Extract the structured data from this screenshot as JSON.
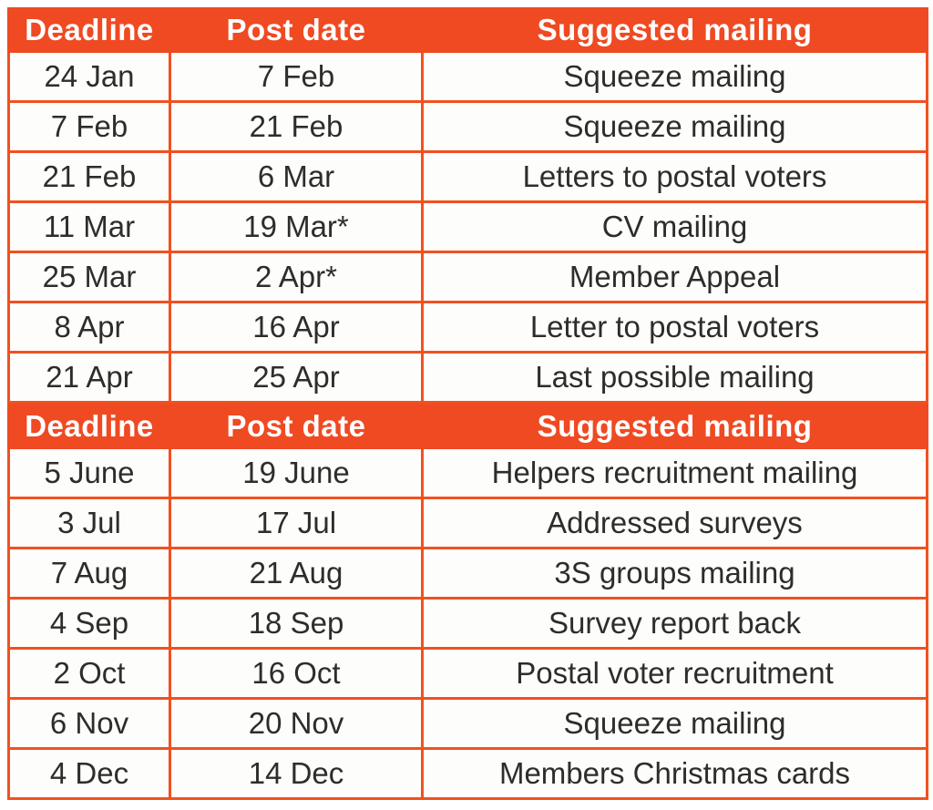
{
  "page": {
    "background_color": "#FFFFFF",
    "accent_color": "#EF4A22",
    "row_background_color": "#FDFDFC",
    "body_text_color": "#2E2D2C",
    "header_text_color": "#FFFFFF"
  },
  "tables": [
    {
      "name": "first-half-mailing-schedule",
      "headers": {
        "deadline": "Deadline",
        "post_date": "Post date",
        "suggested_mailing": "Suggested mailing"
      },
      "rows": [
        {
          "deadline": "24 Jan",
          "post_date": "7 Feb",
          "suggested_mailing": "Squeeze mailing"
        },
        {
          "deadline": "7 Feb",
          "post_date": "21 Feb",
          "suggested_mailing": "Squeeze mailing"
        },
        {
          "deadline": "21 Feb",
          "post_date": "6 Mar",
          "suggested_mailing": "Letters to postal voters"
        },
        {
          "deadline": "11 Mar",
          "post_date": "19 Mar*",
          "suggested_mailing": "CV mailing"
        },
        {
          "deadline": "25 Mar",
          "post_date": "2 Apr*",
          "suggested_mailing": "Member Appeal"
        },
        {
          "deadline": "8 Apr",
          "post_date": "16 Apr",
          "suggested_mailing": "Letter to postal voters"
        },
        {
          "deadline": "21 Apr",
          "post_date": "25 Apr",
          "suggested_mailing": "Last possible mailing"
        }
      ]
    },
    {
      "name": "second-half-mailing-schedule",
      "headers": {
        "deadline": "Deadline",
        "post_date": "Post date",
        "suggested_mailing": "Suggested mailing"
      },
      "rows": [
        {
          "deadline": "5 June",
          "post_date": "19 June",
          "suggested_mailing": "Helpers recruitment mailing"
        },
        {
          "deadline": "3 Jul",
          "post_date": "17 Jul",
          "suggested_mailing": "Addressed surveys"
        },
        {
          "deadline": "7 Aug",
          "post_date": "21 Aug",
          "suggested_mailing": "3S groups mailing"
        },
        {
          "deadline": "4 Sep",
          "post_date": "18 Sep",
          "suggested_mailing": "Survey report back"
        },
        {
          "deadline": "2 Oct",
          "post_date": "16 Oct",
          "suggested_mailing": "Postal voter recruitment"
        },
        {
          "deadline": "6 Nov",
          "post_date": "20 Nov",
          "suggested_mailing": "Squeeze mailing"
        },
        {
          "deadline": "4 Dec",
          "post_date": "14 Dec",
          "suggested_mailing": "Members Christmas cards"
        }
      ]
    }
  ]
}
